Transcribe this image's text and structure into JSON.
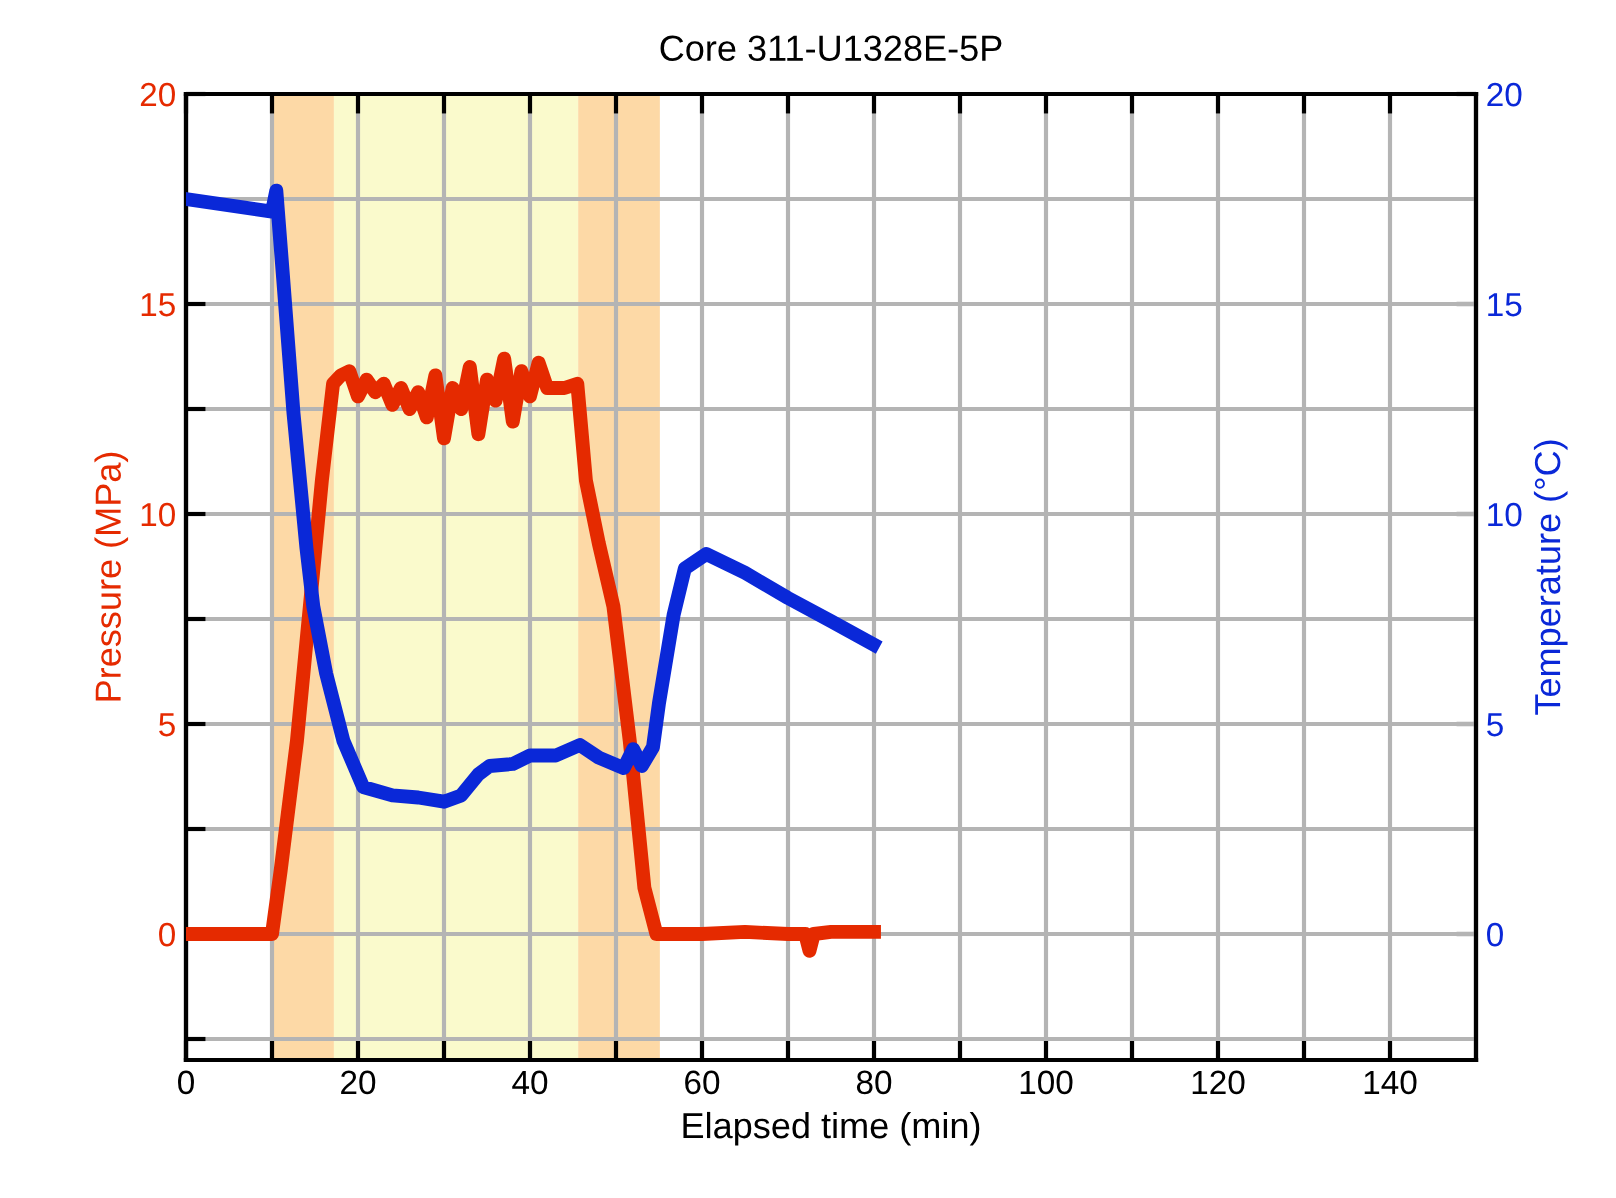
{
  "chart_data": {
    "type": "line",
    "title": "Core 311-U1328E-5P",
    "xlabel": "Elapsed time (min)",
    "ylabel": "Pressure (MPa)",
    "y2label": "Temperature (°C)",
    "series": [
      {
        "color": "#e52a00",
        "x": [
          0,
          10,
          11,
          12.9,
          14.4,
          15.8,
          17.1,
          18,
          19,
          20,
          21,
          22,
          23,
          24,
          25,
          26,
          27,
          28,
          29,
          30,
          31,
          32,
          33,
          34,
          35,
          36,
          37,
          38,
          39,
          40,
          41,
          42,
          43,
          44,
          45.5,
          46.5,
          48,
          49.7,
          51.6,
          53.3,
          54.7,
          60,
          65,
          70,
          72,
          72.5,
          73,
          75,
          80
        ],
        "values": [
          0,
          0,
          1.5,
          4.6,
          7.8,
          10.8,
          13.1,
          13.3,
          13.4,
          12.8,
          13.2,
          12.9,
          13.1,
          12.6,
          13.0,
          12.5,
          12.9,
          12.3,
          13.3,
          11.8,
          13.0,
          12.5,
          13.5,
          11.9,
          13.2,
          12.7,
          13.7,
          12.2,
          13.4,
          12.8,
          13.6,
          13.0,
          13.0,
          13.0,
          13.1,
          10.8,
          9.3,
          7.8,
          4.6,
          1.1,
          0,
          0,
          0.05,
          0,
          0,
          -0.4,
          0,
          0.05,
          0.05
        ]
      },
      {
        "color": "#0a28d8",
        "axis": "y2",
        "x": [
          0,
          10,
          10.5,
          11.3,
          12.5,
          14.0,
          14.8,
          16.3,
          18.3,
          20.6,
          24,
          27,
          30,
          32,
          34,
          35.3,
          38,
          40,
          43,
          45.8,
          48,
          50.9,
          52,
          53,
          54.3,
          55,
          56.7,
          58,
          60.5,
          65,
          70,
          75,
          79.9
        ],
        "values": [
          17.5,
          17.2,
          17.7,
          15.6,
          12.4,
          9.2,
          7.8,
          6.2,
          4.6,
          3.5,
          3.3,
          3.25,
          3.15,
          3.3,
          3.8,
          4.0,
          4.05,
          4.25,
          4.25,
          4.5,
          4.2,
          3.95,
          4.4,
          4.0,
          4.45,
          5.5,
          7.6,
          8.7,
          9.05,
          8.6,
          8.0,
          7.45,
          6.9
        ]
      }
    ],
    "bands": [
      {
        "axis": "x",
        "from": 10,
        "to": 17.2,
        "color": "#fdd9a6"
      },
      {
        "axis": "x",
        "from": 17.2,
        "to": 45.6,
        "color": "#fafacc"
      },
      {
        "axis": "x",
        "from": 45.6,
        "to": 55.1,
        "color": "#fdd9a6"
      }
    ],
    "xlim": [
      0,
      150
    ],
    "xticks": [
      0,
      {
        "value": 10,
        "label": null
      },
      20,
      {
        "value": 30,
        "label": null
      },
      40,
      {
        "value": 50,
        "label": null
      },
      60,
      {
        "value": 70,
        "label": null
      },
      80,
      {
        "value": 90,
        "label": null
      },
      100,
      {
        "value": 110,
        "label": null
      },
      120,
      {
        "value": 130,
        "label": null
      },
      140
    ],
    "ylim": [
      -3,
      20
    ],
    "yticks": [
      {
        "value": -2.5,
        "label": null
      },
      0,
      {
        "value": 2.5,
        "label": null
      },
      5,
      {
        "value": 7.5,
        "label": null
      },
      10,
      {
        "value": 12.5,
        "label": null
      },
      15,
      {
        "value": 17.5,
        "label": null
      },
      20
    ],
    "y2lim": [
      -3,
      20
    ],
    "y2ticks": [
      0,
      5,
      10,
      15,
      20
    ],
    "grid": true,
    "line_style": "solid",
    "marker": "none"
  }
}
